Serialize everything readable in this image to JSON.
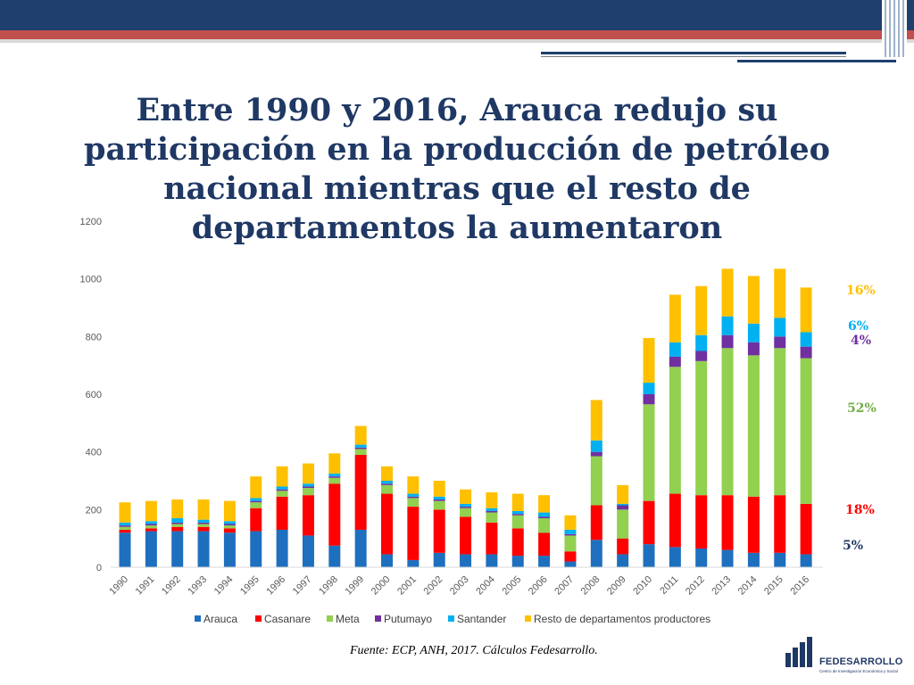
{
  "slide": {
    "title": "Entre 1990 y 2016, Arauca redujo su participación en la producción de petróleo nacional mientras que el resto de departamentos la aumentaron",
    "source_label": "Fuente:",
    "source_text": "ECP, ANH, 2017. Cálculos Fedesarrollo.",
    "logo_name": "FEDESARROLLO",
    "logo_sub": "Centro de Investigación Económica y Social"
  },
  "share_labels": [
    {
      "text": "16%",
      "color": "#ffc000"
    },
    {
      "text": "6%",
      "color": "#00b0f0"
    },
    {
      "text": "4%",
      "color": "#7030a0"
    },
    {
      "text": "52%",
      "color": "#70ad47"
    },
    {
      "text": "18%",
      "color": "#ff0000"
    },
    {
      "text": "5%",
      "color": "#1f3864"
    }
  ],
  "chart_data": {
    "type": "bar",
    "stacked": true,
    "categories": [
      "1990",
      "1991",
      "1992",
      "1993",
      "1994",
      "1995",
      "1996",
      "1997",
      "1998",
      "1999",
      "2000",
      "2001",
      "2002",
      "2003",
      "2004",
      "2005",
      "2006",
      "2007",
      "2008",
      "2009",
      "2010",
      "2011",
      "2012",
      "2013",
      "2014",
      "2015",
      "2016"
    ],
    "series": [
      {
        "name": "Arauca",
        "color": "#1f6fbf",
        "values": [
          120,
          125,
          125,
          125,
          120,
          125,
          130,
          110,
          75,
          130,
          45,
          25,
          50,
          45,
          45,
          40,
          40,
          20,
          95,
          45,
          80,
          70,
          65,
          60,
          50,
          50,
          45
        ]
      },
      {
        "name": "Casanare",
        "color": "#ff0000",
        "values": [
          10,
          10,
          15,
          15,
          15,
          80,
          115,
          140,
          215,
          260,
          210,
          185,
          150,
          130,
          110,
          95,
          80,
          35,
          120,
          55,
          150,
          185,
          185,
          190,
          195,
          200,
          175
        ]
      },
      {
        "name": "Meta",
        "color": "#92d050",
        "values": [
          10,
          10,
          10,
          10,
          10,
          20,
          20,
          25,
          20,
          20,
          30,
          30,
          30,
          30,
          35,
          45,
          50,
          55,
          170,
          100,
          335,
          440,
          465,
          510,
          490,
          510,
          505
        ]
      },
      {
        "name": "Putumayo",
        "color": "#7030a0",
        "values": [
          5,
          5,
          5,
          5,
          5,
          5,
          5,
          5,
          5,
          5,
          5,
          5,
          5,
          5,
          5,
          5,
          5,
          5,
          15,
          15,
          35,
          35,
          35,
          45,
          45,
          40,
          40
        ]
      },
      {
        "name": "Santander",
        "color": "#00b0f0",
        "values": [
          10,
          10,
          15,
          10,
          10,
          10,
          10,
          10,
          10,
          10,
          10,
          10,
          10,
          10,
          10,
          10,
          15,
          15,
          40,
          5,
          40,
          50,
          55,
          65,
          65,
          65,
          50
        ]
      },
      {
        "name": "Resto de departamentos productores",
        "color": "#ffc000",
        "values": [
          70,
          70,
          65,
          70,
          70,
          75,
          70,
          70,
          70,
          65,
          50,
          60,
          55,
          50,
          55,
          60,
          60,
          50,
          140,
          65,
          155,
          165,
          170,
          165,
          165,
          170,
          155
        ]
      }
    ],
    "y_ticks": [
      0,
      200,
      400,
      600,
      800,
      1000,
      1200
    ],
    "ylim": [
      0,
      1200
    ],
    "legend_position": "bottom",
    "grid": false,
    "title": "",
    "xlabel": "",
    "ylabel": ""
  }
}
